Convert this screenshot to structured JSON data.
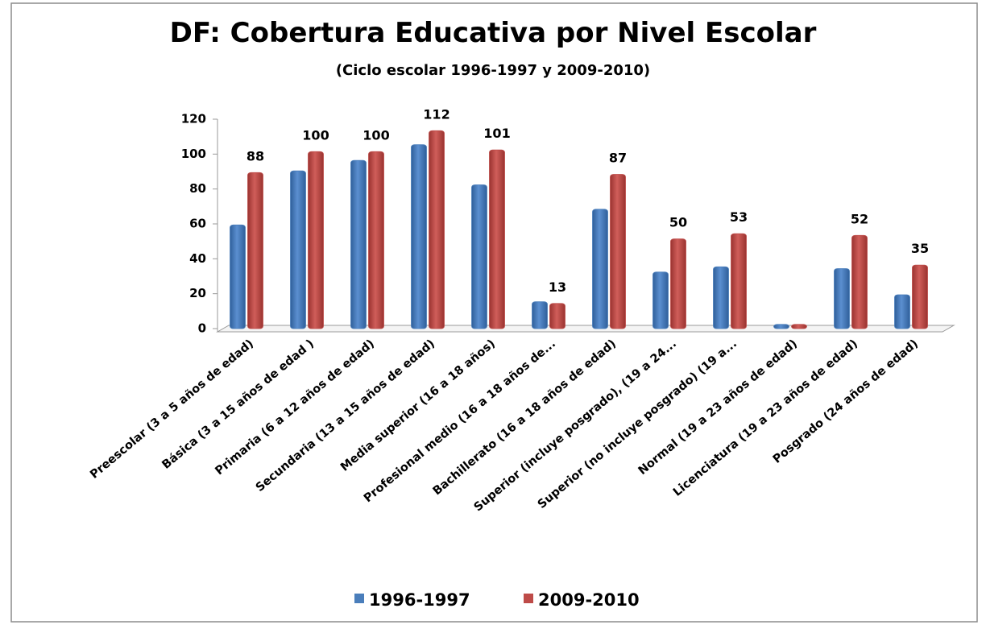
{
  "chart_data": {
    "type": "bar",
    "title": "DF: Cobertura Educativa por Nivel Escolar",
    "subtitle": "(Ciclo escolar 1996-1997 y 2009-2010)",
    "categories": [
      "Preescolar (3 a 5 años de edad)",
      "Básica (3 a 15 años de edad )",
      "Primaria (6 a 12 años de edad)",
      "Secundaria (13 a 15 años de edad)",
      "Media superior (16 a 18 años)",
      "Profesional medio (16 a 18 años de...",
      "Bachillerato (16 a 18 años de edad)",
      "Superior (incluye posgrado), (19 a 24...",
      "Superior (no incluye posgrado) (19 a...",
      "Normal (19 a 23 años de edad)",
      "Licenciatura (19 a 23 años de edad)",
      "Posgrado (24 años de edad)"
    ],
    "series": [
      {
        "name": "1996-1997",
        "color": "#4a7ebb",
        "values": [
          58,
          89,
          95,
          104,
          81,
          14,
          67,
          31,
          34,
          1,
          33,
          18
        ]
      },
      {
        "name": "2009-2010",
        "color": "#be4b48",
        "values": [
          88,
          100,
          100,
          112,
          101,
          13,
          87,
          50,
          53,
          1,
          52,
          35
        ],
        "value_labels": [
          "88",
          "100",
          "100",
          "112",
          "101",
          "13",
          "87",
          "50",
          "53",
          null,
          "52",
          "35"
        ]
      }
    ],
    "ylim": [
      0,
      120
    ],
    "yticks": [
      0,
      20,
      40,
      60,
      80,
      100,
      120
    ],
    "grid": false,
    "legend": "bottom"
  }
}
